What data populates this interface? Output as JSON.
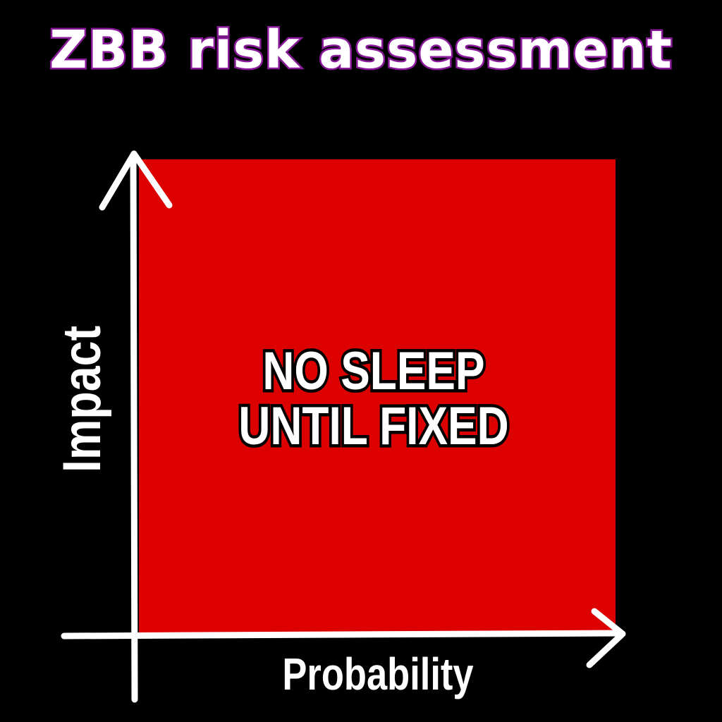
{
  "title": "ZBB risk assessment",
  "axes": {
    "y_label": "Impact",
    "x_label": "Probability"
  },
  "matrix": {
    "zone_label_lines": [
      "NO SLEEP",
      "UNTIL FIXED"
    ]
  },
  "colors": {
    "background": "#000000",
    "risk_zone": "#dc0000",
    "title_outline": "#8a1a9b",
    "text": "#ffffff",
    "axis": "#ffffff"
  }
}
